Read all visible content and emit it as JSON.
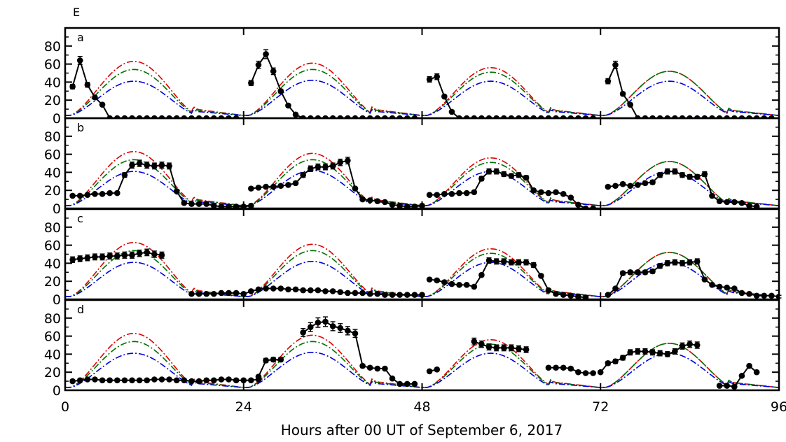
{
  "figure_label": "E",
  "xlabel": "Hours after 00 UT of September 6, 2017",
  "chart_data": {
    "type": "line",
    "xlabel": "Hours after 00 UT of September 6, 2017",
    "xlim": [
      0,
      96
    ],
    "xticks": [
      0,
      24,
      48,
      72,
      96
    ],
    "ylim": [
      0,
      100
    ],
    "yticks": [
      0,
      20,
      40,
      60,
      80
    ],
    "grid": false,
    "model_curves": [
      {
        "color": "#e00000",
        "style": "dash-dot",
        "peak_day": [
          63,
          61,
          56,
          52
        ]
      },
      {
        "color": "#007000",
        "style": "dash-dot",
        "peak_day": [
          54,
          54,
          51,
          52
        ]
      },
      {
        "color": "#0000dd",
        "style": "dash-dot",
        "peak_day": [
          41,
          42,
          41,
          41
        ]
      }
    ],
    "panels": [
      {
        "label": "a",
        "segments": [
          {
            "x": [
              1,
              2,
              3,
              4,
              5,
              6,
              7,
              8,
              9,
              10,
              11,
              12,
              13,
              14,
              15,
              16,
              17,
              18,
              19,
              20,
              21,
              22,
              23
            ],
            "y": [
              35,
              64,
              37,
              23,
              15,
              0,
              0,
              0,
              0,
              0,
              0,
              0,
              0,
              0,
              0,
              0,
              0,
              0,
              0,
              0,
              0,
              0,
              0
            ]
          },
          {
            "x": [
              25,
              26,
              27,
              28,
              29,
              30,
              31,
              32,
              33,
              34,
              35,
              36,
              37,
              38,
              39,
              40,
              41,
              42,
              43,
              44,
              45,
              46,
              47
            ],
            "y": [
              39,
              59,
              71,
              52,
              30,
              14,
              4,
              0,
              0,
              0,
              0,
              0,
              0,
              0,
              0,
              0,
              0,
              0,
              0,
              0,
              0,
              0,
              0
            ]
          },
          {
            "x": [
              49,
              50,
              51,
              52,
              53,
              54,
              55,
              56,
              57,
              58,
              59,
              60,
              61,
              62,
              63,
              64,
              65,
              66,
              67,
              68,
              69,
              70,
              71
            ],
            "y": [
              43,
              46,
              24,
              7,
              0,
              0,
              0,
              0,
              0,
              0,
              0,
              0,
              0,
              0,
              0,
              0,
              0,
              0,
              0,
              0,
              0,
              0,
              0
            ]
          },
          {
            "x": [
              73,
              74,
              75,
              76,
              77,
              78,
              79,
              80,
              81,
              82,
              83,
              84,
              85,
              86,
              87,
              88,
              89,
              90,
              91,
              92,
              93,
              94,
              95
            ],
            "y": [
              41,
              59,
              27,
              15,
              0,
              0,
              0,
              0,
              0,
              0,
              0,
              0,
              0,
              0,
              0,
              0,
              0,
              0,
              0,
              0,
              0,
              0,
              0
            ]
          }
        ]
      },
      {
        "label": "b",
        "segments": [
          {
            "x": [
              1,
              2,
              3,
              4,
              5,
              6,
              7,
              8,
              9,
              10,
              11,
              12,
              13,
              14,
              15,
              16,
              17,
              18,
              19,
              20,
              21,
              22,
              23,
              24,
              25
            ],
            "y": [
              14,
              14,
              15,
              16,
              16,
              17,
              17,
              37,
              48,
              50,
              48,
              47,
              48,
              47,
              19,
              6,
              5,
              5,
              5,
              3,
              2,
              2,
              2,
              2,
              3
            ]
          },
          {
            "x": [
              25,
              26,
              27,
              28,
              29,
              30,
              31,
              32,
              33,
              34,
              35,
              36,
              37,
              38,
              39,
              40,
              41,
              42,
              43,
              44,
              45,
              46,
              47,
              48
            ],
            "y": [
              22,
              23,
              24,
              24,
              25,
              26,
              28,
              37,
              44,
              46,
              46,
              47,
              51,
              53,
              22,
              10,
              9,
              8,
              7,
              4,
              3,
              2,
              2,
              3
            ]
          },
          {
            "x": [
              49,
              50,
              51,
              52,
              53,
              54,
              55,
              56,
              57,
              58,
              59,
              60,
              61,
              62,
              63,
              64,
              65,
              66,
              67,
              68,
              69,
              70,
              71
            ],
            "y": [
              15,
              15,
              16,
              16,
              17,
              17,
              18,
              33,
              41,
              41,
              38,
              36,
              37,
              34,
              20,
              18,
              17,
              18,
              16,
              12,
              4,
              0,
              0
            ]
          },
          {
            "x": [
              73,
              74,
              75,
              76,
              77,
              78,
              79,
              80,
              81,
              82,
              83,
              84,
              85,
              86,
              87,
              88,
              89,
              90,
              91,
              92,
              93
            ],
            "y": [
              24,
              25,
              27,
              25,
              26,
              28,
              29,
              37,
              41,
              41,
              37,
              35,
              35,
              38,
              14,
              8,
              7,
              7,
              6,
              3,
              2
            ]
          }
        ]
      },
      {
        "label": "c",
        "segments": [
          {
            "x": [
              1,
              2,
              3,
              4,
              5,
              6,
              7,
              8,
              9,
              10,
              11,
              12,
              13
            ],
            "y": [
              44,
              45,
              46,
              47,
              47,
              48,
              48,
              49,
              49,
              51,
              52,
              50,
              49
            ]
          },
          {
            "x": [
              17,
              18,
              19,
              20,
              21,
              22,
              23,
              24,
              25,
              26,
              27,
              28,
              29,
              30,
              31,
              32,
              33,
              34,
              35,
              36,
              37,
              38,
              39,
              40,
              41,
              42,
              43,
              44,
              45,
              46,
              47,
              48
            ],
            "y": [
              6,
              6,
              6,
              6,
              7,
              7,
              7,
              6,
              9,
              11,
              12,
              12,
              12,
              11,
              11,
              10,
              10,
              10,
              9,
              9,
              8,
              7,
              7,
              7,
              6,
              6,
              5,
              5,
              5,
              5,
              5,
              5
            ]
          },
          {
            "x": [
              49,
              50,
              51,
              52,
              53,
              54,
              55,
              56,
              57,
              58,
              59,
              60,
              61,
              62,
              63,
              64,
              65,
              66,
              67,
              68,
              69,
              70
            ],
            "y": [
              22,
              21,
              19,
              17,
              16,
              16,
              14,
              27,
              43,
              42,
              42,
              41,
              41,
              41,
              38,
              26,
              10,
              6,
              5,
              4,
              3,
              2
            ]
          },
          {
            "x": [
              73,
              74,
              75,
              76,
              77,
              78,
              79,
              80,
              81,
              82,
              83,
              84,
              85,
              86,
              87,
              88,
              89,
              90,
              91,
              92,
              93,
              94,
              95,
              96
            ],
            "y": [
              5,
              12,
              29,
              30,
              30,
              30,
              31,
              37,
              40,
              41,
              40,
              41,
              42,
              22,
              16,
              14,
              13,
              12,
              7,
              6,
              4,
              4,
              4,
              3
            ]
          }
        ]
      },
      {
        "label": "d",
        "segments": [
          {
            "x": [
              1,
              2,
              3,
              4,
              5,
              6,
              7,
              8,
              9,
              10,
              11,
              12,
              13,
              14,
              15,
              16,
              17,
              18,
              19,
              20,
              21,
              22,
              23,
              24,
              25,
              26
            ],
            "y": [
              10,
              11,
              12,
              12,
              11,
              11,
              11,
              11,
              11,
              11,
              11,
              12,
              12,
              12,
              11,
              11,
              10,
              10,
              11,
              11,
              12,
              12,
              11,
              11,
              11,
              12
            ]
          },
          {
            "x": [
              26,
              27,
              28,
              29
            ],
            "y": [
              15,
              33,
              34,
              34
            ]
          },
          {
            "x": [
              32,
              33,
              34,
              35,
              36,
              37,
              38,
              39,
              40,
              41,
              42,
              43,
              44,
              45,
              46,
              47
            ],
            "y": [
              64,
              70,
              75,
              76,
              71,
              69,
              66,
              63,
              27,
              25,
              24,
              24,
              13,
              7,
              7,
              7
            ]
          },
          {
            "x": [
              49,
              50
            ],
            "y": [
              21,
              23
            ]
          },
          {
            "x": [
              55,
              56,
              57,
              58,
              59,
              60,
              61,
              62
            ],
            "y": [
              54,
              51,
              48,
              47,
              47,
              47,
              46,
              45
            ]
          },
          {
            "x": [
              65,
              66,
              67,
              68,
              69,
              70,
              71
            ],
            "y": [
              25,
              25,
              25,
              24,
              20,
              19,
              19
            ]
          },
          {
            "x": [
              72,
              73,
              74,
              75,
              76,
              77,
              78,
              79,
              80,
              81,
              82,
              83,
              84,
              85
            ],
            "y": [
              20,
              30,
              32,
              36,
              42,
              43,
              43,
              42,
              41,
              40,
              43,
              49,
              51,
              50
            ]
          },
          {
            "x": [
              88,
              89,
              90
            ],
            "y": [
              5,
              5,
              4
            ]
          },
          {
            "x": [
              90,
              91,
              92,
              93
            ],
            "y": [
              4,
              16,
              27,
              20
            ]
          }
        ]
      }
    ]
  }
}
